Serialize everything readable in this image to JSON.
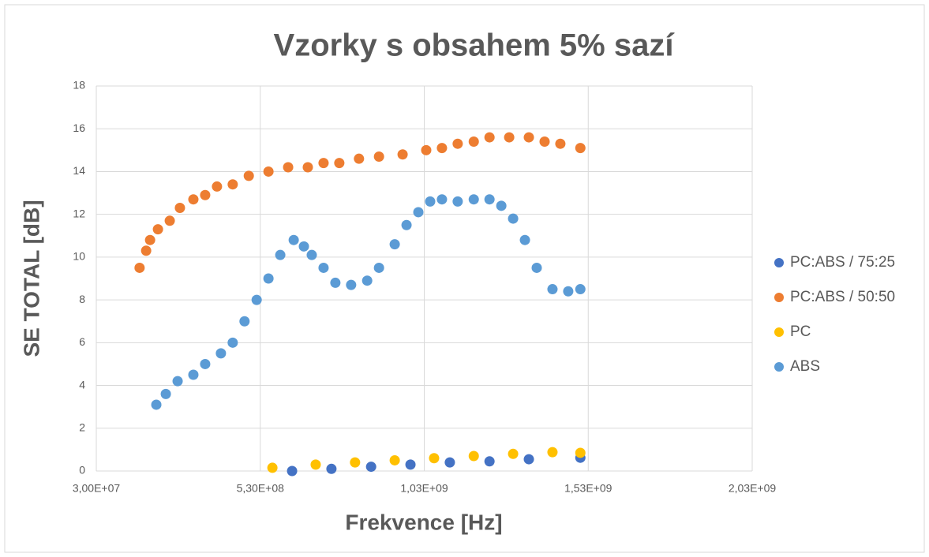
{
  "chart_data": {
    "type": "scatter",
    "title": "Vzorky s obsahem 5% sazí",
    "xlabel": "Frekvence [Hz]",
    "ylabel": "SE TOTAL [dB]",
    "xlim": [
      30000000,
      2030000000
    ],
    "xticks": [
      {
        "value": 30000000,
        "label": "3,00E+07"
      },
      {
        "value": 530000000,
        "label": "5,30E+08"
      },
      {
        "value": 1030000000,
        "label": "1,03E+09"
      },
      {
        "value": 1530000000,
        "label": "1,53E+09"
      },
      {
        "value": 2030000000,
        "label": "2,03E+09"
      }
    ],
    "ylim": [
      0,
      18
    ],
    "yticks": [
      0,
      2,
      4,
      6,
      8,
      10,
      12,
      14,
      16,
      18
    ],
    "grid": true,
    "legend": "right",
    "series": [
      {
        "name": "PC:ABS / 75:25",
        "color": "#4472c4",
        "x": [
          627000000.0,
          747000000.0,
          868000000.0,
          988000000.0,
          1108000000.0,
          1229000000.0,
          1349000000.0,
          1506000000.0
        ],
        "values": [
          0.0,
          0.1,
          0.2,
          0.3,
          0.4,
          0.45,
          0.55,
          0.62
        ]
      },
      {
        "name": "PC:ABS / 50:50",
        "color": "#ed7d31",
        "x": [
          162000000.0,
          182000000.0,
          194000000.0,
          218000000.0,
          254000000.0,
          285000000.0,
          326000000.0,
          362000000.0,
          398000000.0,
          446000000.0,
          495000000.0,
          555000000.0,
          615000000.0,
          675000000.0,
          723000000.0,
          771000000.0,
          831000000.0,
          892000000.0,
          964000000.0,
          1036000000.0,
          1084000000.0,
          1132000000.0,
          1181000000.0,
          1229000000.0,
          1289000000.0,
          1349000000.0,
          1397000000.0,
          1445000000.0,
          1506000000.0
        ],
        "values": [
          9.5,
          10.3,
          10.8,
          11.3,
          11.7,
          12.3,
          12.7,
          12.9,
          13.3,
          13.4,
          13.8,
          14.0,
          14.2,
          14.2,
          14.4,
          14.4,
          14.6,
          14.7,
          14.8,
          15.0,
          15.1,
          15.3,
          15.4,
          15.6,
          15.6,
          15.6,
          15.4,
          15.3,
          15.1
        ]
      },
      {
        "name": "PC",
        "color": "#ffc000",
        "x": [
          567000000.0,
          699000000.0,
          819000000.0,
          940000000.0,
          1060000000.0,
          1181000000.0,
          1301000000.0,
          1421000000.0,
          1506000000.0
        ],
        "values": [
          0.15,
          0.3,
          0.4,
          0.5,
          0.6,
          0.7,
          0.8,
          0.88,
          0.85
        ]
      },
      {
        "name": "ABS",
        "color": "#5b9bd5",
        "x": [
          213000000.0,
          242000000.0,
          278000000.0,
          326000000.0,
          362000000.0,
          410000000.0,
          446000000.0,
          482000000.0,
          519000000.0,
          555000000.0,
          591000000.0,
          632000000.0,
          663000000.0,
          687000000.0,
          723000000.0,
          759000000.0,
          807000000.0,
          856000000.0,
          892000000.0,
          940000000.0,
          976000000.0,
          1012000000.0,
          1048000000.0,
          1084000000.0,
          1132000000.0,
          1181000000.0,
          1229000000.0,
          1265000000.0,
          1301000000.0,
          1337000000.0,
          1373000000.0,
          1421000000.0,
          1469000000.0,
          1506000000.0
        ],
        "values": [
          3.1,
          3.6,
          4.2,
          4.5,
          5.0,
          5.5,
          6.0,
          7.0,
          8.0,
          9.0,
          10.1,
          10.8,
          10.5,
          10.1,
          9.5,
          8.8,
          8.7,
          8.9,
          9.5,
          10.6,
          11.5,
          12.1,
          12.6,
          12.7,
          12.6,
          12.7,
          12.7,
          12.4,
          11.8,
          10.8,
          9.5,
          8.5,
          8.4,
          8.5
        ]
      }
    ]
  }
}
